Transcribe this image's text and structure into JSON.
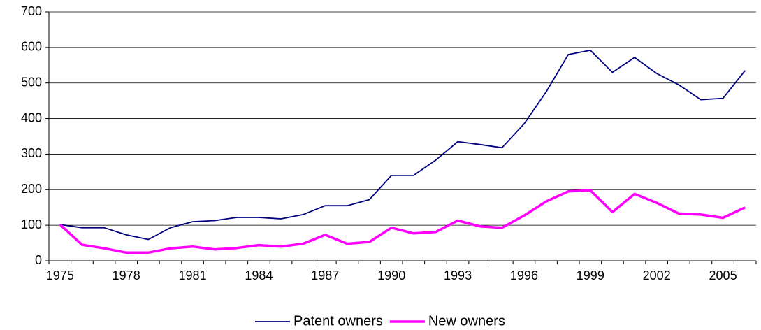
{
  "chart_data": {
    "type": "line",
    "categories": [
      "1975",
      null,
      null,
      "1978",
      null,
      null,
      "1981",
      null,
      null,
      "1984",
      null,
      null,
      "1987",
      null,
      null,
      "1990",
      null,
      null,
      "1993",
      null,
      null,
      "1996",
      null,
      null,
      "1999",
      null,
      null,
      "2002",
      null,
      null,
      "2005",
      null
    ],
    "series": [
      {
        "name": "Patent owners",
        "color": "#000080",
        "values": [
          102,
          93,
          93,
          73,
          60,
          93,
          110,
          113,
          122,
          122,
          118,
          130,
          155,
          155,
          172,
          240,
          240,
          283,
          335,
          327,
          318,
          385,
          475,
          580,
          592,
          530,
          572,
          527,
          495,
          453,
          457,
          535
        ]
      },
      {
        "name": "New owners",
        "color": "#ff00ff",
        "values": [
          102,
          45,
          35,
          23,
          23,
          35,
          40,
          32,
          36,
          44,
          40,
          48,
          73,
          48,
          53,
          93,
          77,
          81,
          113,
          97,
          93,
          127,
          167,
          195,
          198,
          137,
          188,
          163,
          133,
          130,
          121,
          150
        ]
      }
    ],
    "ylim": [
      0,
      700
    ],
    "yticks": [
      0,
      100,
      200,
      300,
      400,
      500,
      600,
      700
    ],
    "grid": true,
    "legend": "bottom"
  }
}
